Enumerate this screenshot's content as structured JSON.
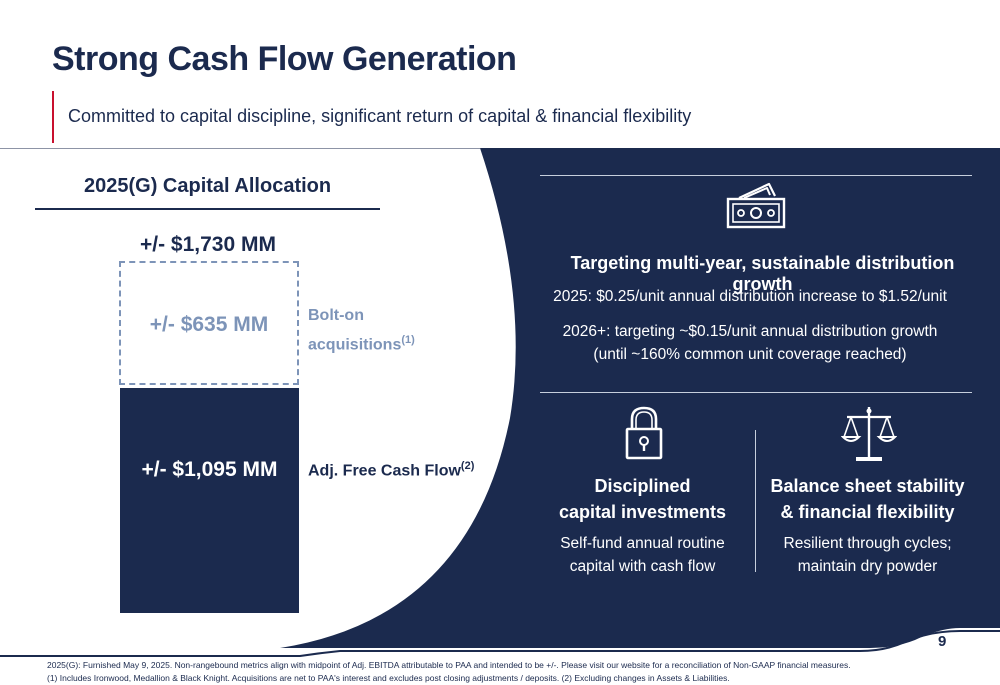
{
  "header": {
    "title": "Strong Cash Flow Generation",
    "subtitle": "Committed to capital discipline, significant return of capital & financial flexibility"
  },
  "colors": {
    "navy": "#1b2a4e",
    "accent_red": "#c8102e",
    "light_blue": "#7d94b8",
    "white": "#ffffff"
  },
  "capital_allocation": {
    "title": "2025(G) Capital Allocation",
    "total": "+/- $1,730 MM",
    "bolt_on": {
      "value": "+/- $635 MM",
      "label_line1": "Bolt-on",
      "label_line2": "acquisitions",
      "footnote_ref": "(1)"
    },
    "free_cash_flow": {
      "value": "+/- $1,095 MM",
      "label": "Adj. Free Cash Flow",
      "footnote_ref": "(2)"
    }
  },
  "distribution": {
    "icon": "cash-icon",
    "heading": "Targeting multi-year, sustainable distribution growth",
    "line1": "2025: $0.25/unit annual distribution increase to $1.52/unit",
    "line2a": "2026+: targeting ~$0.15/unit annual distribution growth",
    "line2b": "(until ~160% common unit coverage reached)"
  },
  "capital_investments": {
    "icon": "lock-icon",
    "heading_line1": "Disciplined",
    "heading_line2": "capital investments",
    "desc_line1": "Self-fund annual routine",
    "desc_line2": "capital with cash flow"
  },
  "balance_sheet": {
    "icon": "scale-icon",
    "heading_line1": "Balance sheet stability",
    "heading_line2": "& financial flexibility",
    "desc_line1": "Resilient through cycles;",
    "desc_line2": "maintain dry powder"
  },
  "page_number": "9",
  "footnotes": {
    "line1": "2025(G): Furnished May 9, 2025. Non-rangebound metrics align with midpoint of Adj. EBITDA attributable to PAA and intended to be +/-.  Please visit our website for a reconciliation of Non-GAAP financial measures.",
    "line2": "(1) Includes Ironwood, Medallion & Black Knight. Acquisitions are net to PAA's interest and excludes post closing adjustments / deposits. (2) Excluding changes in Assets & Liabilities."
  }
}
